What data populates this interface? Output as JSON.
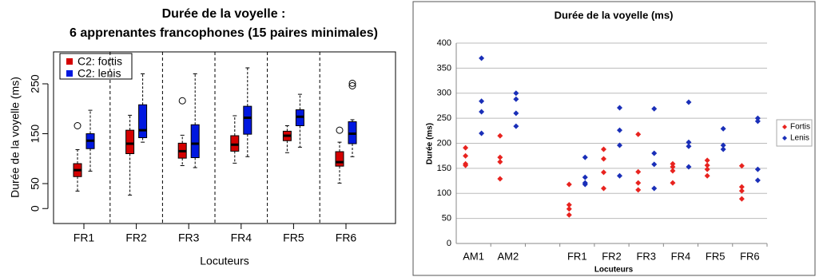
{
  "chart_data": [
    {
      "type": "box",
      "title": [
        "Durée de la voyelle :",
        "6 apprenantes francophones (15 paires minimales)"
      ],
      "xlabel": "Locuteurs",
      "ylabel": "Durée de la voyelle (ms)",
      "categories": [
        "FR1",
        "FR2",
        "FR3",
        "FR4",
        "FR5",
        "FR6"
      ],
      "ylim": [
        -30,
        314
      ],
      "yticks": [
        0,
        50,
        150,
        250
      ],
      "legend": "top-left",
      "series": [
        {
          "name": "C2: fortis",
          "color": "#d40000",
          "min": [
            35,
            27,
            86,
            91,
            112,
            51
          ],
          "q1": [
            64,
            110,
            101,
            115,
            136,
            85
          ],
          "median": [
            77,
            130,
            115,
            128,
            146,
            93
          ],
          "q3": [
            90,
            157,
            131,
            146,
            155,
            114
          ],
          "max": [
            118,
            187,
            147,
            186,
            166,
            133
          ],
          "outliers": [
            [
              166
            ],
            [],
            [
              216
            ],
            [],
            [],
            [
              157
            ]
          ]
        },
        {
          "name": "C2: lenis",
          "color": "#0018e0",
          "min": [
            75,
            133,
            82,
            104,
            123,
            104
          ],
          "q1": [
            120,
            142,
            102,
            149,
            166,
            130
          ],
          "median": [
            136,
            157,
            130,
            182,
            184,
            150
          ],
          "q3": [
            150,
            208,
            168,
            205,
            198,
            174
          ],
          "max": [
            197,
            270,
            270,
            282,
            229,
            178
          ],
          "outliers": [
            [],
            [],
            [],
            [],
            [],
            [
              246,
              251
            ]
          ]
        }
      ]
    },
    {
      "type": "strip",
      "title": "Durée de la voyelle (ms)",
      "xlabel": "Locuteurs",
      "ylabel": "Durée (ms)",
      "categories": [
        "AM1",
        "AM2",
        null,
        "FR1",
        "FR2",
        "FR3",
        "FR4",
        "FR5",
        "FR6"
      ],
      "ylim": [
        0,
        400
      ],
      "yticks": [
        0,
        50,
        100,
        150,
        200,
        250,
        300,
        350,
        400
      ],
      "grid": true,
      "legend": "right",
      "series": [
        {
          "name": "Fortis",
          "color": "#e8231f",
          "values": [
            [
              191,
              175,
              159,
              156
            ],
            [
              215,
              172,
              163,
              129
            ],
            null,
            [
              118,
              77,
              69,
              57
            ],
            [
              188,
              169,
              142,
              110
            ],
            [
              218,
              143,
              121,
              107
            ],
            [
              159,
              153,
              145,
              121
            ],
            [
              166,
              156,
              148,
              135
            ],
            [
              155,
              113,
              105,
              89
            ]
          ]
        },
        {
          "name": "Lenis",
          "color": "#1a2fb8",
          "values": [
            [
              370,
              284,
              263,
              220
            ],
            [
              300,
              288,
              260,
              234
            ],
            null,
            [
              172,
              132,
              121,
              118
            ],
            [
              271,
              226,
              196,
              135
            ],
            [
              269,
              180,
              158,
              110
            ],
            [
              282,
              202,
              194,
              153
            ],
            [
              229,
              196,
              188
            ],
            [
              250,
              244,
              148,
              126
            ]
          ]
        }
      ]
    }
  ]
}
